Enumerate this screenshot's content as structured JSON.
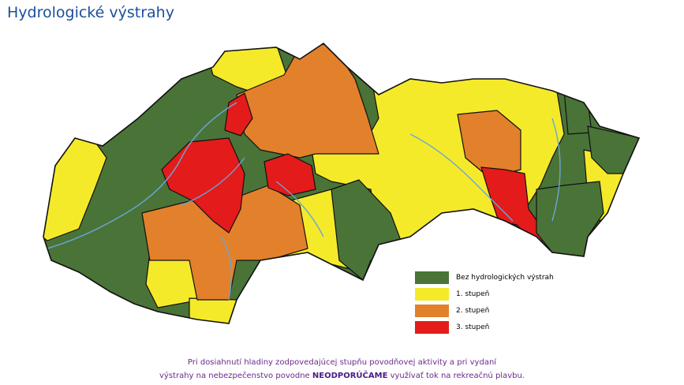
{
  "header": {
    "title": "Hydrologické výstrahy"
  },
  "legend": [
    {
      "label": "Bez hydrologických výstrah",
      "color": "#4a7338"
    },
    {
      "label": "1. stupeň",
      "color": "#f5ea2a"
    },
    {
      "label": "2. stupeň",
      "color": "#e3802b"
    },
    {
      "label": "3. stupeň",
      "color": "#e31b1b"
    }
  ],
  "note": {
    "line1": "Pri dosiahnutí hladiny zodpovedajúcej stupňu povodňovej aktivity a pri vydaní",
    "line2_before": "výstrahy na nebezpečenstvo povodne",
    "line2_bold": "NEODPORÚČAME",
    "line2_after": "využívať tok na rekreačnú plavbu."
  }
}
